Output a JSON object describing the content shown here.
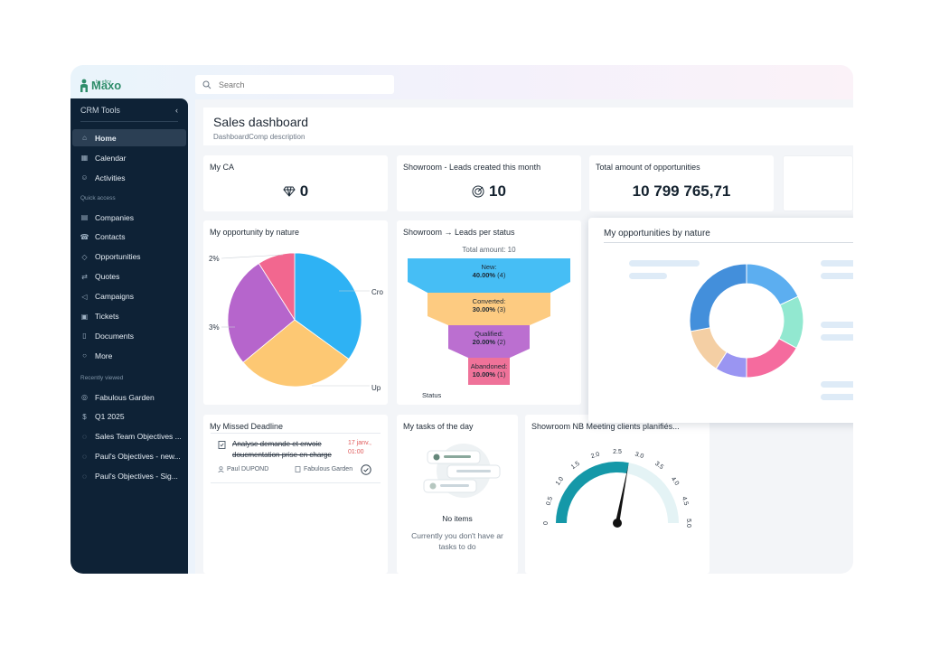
{
  "app": {
    "logo_text": "Maxo",
    "logo_sub": "by eficy",
    "brand_color": "#2e8d6a"
  },
  "search": {
    "placeholder": "Search"
  },
  "sidebar": {
    "header": "CRM Tools",
    "main_items": [
      {
        "label": "Home",
        "icon": "home-icon"
      },
      {
        "label": "Calendar",
        "icon": "calendar-icon"
      },
      {
        "label": "Activities",
        "icon": "activities-icon"
      }
    ],
    "quick_access_title": "Quick access",
    "quick_items": [
      {
        "label": "Companies",
        "icon": "building-icon"
      },
      {
        "label": "Contacts",
        "icon": "contact-icon"
      },
      {
        "label": "Opportunities",
        "icon": "diamond-icon"
      },
      {
        "label": "Quotes",
        "icon": "quote-icon"
      },
      {
        "label": "Campaigns",
        "icon": "megaphone-icon"
      },
      {
        "label": "Tickets",
        "icon": "ticket-icon"
      },
      {
        "label": "Documents",
        "icon": "document-icon"
      },
      {
        "label": "More",
        "icon": "more-icon"
      }
    ],
    "recent_title": "Recently viewed",
    "recent_items": [
      {
        "label": "Fabulous Garden",
        "icon": "company-icon"
      },
      {
        "label": "Q1 2025",
        "icon": "dollar-icon"
      },
      {
        "label": "Sales Team Objectives ...",
        "icon": "objective-icon"
      },
      {
        "label": "Paul's Objectives - new...",
        "icon": "objective-icon"
      },
      {
        "label": "Paul's Objectives - Sig...",
        "icon": "objective-icon"
      }
    ]
  },
  "page": {
    "title": "Sales dashboard",
    "description": "DashboardComp description"
  },
  "kpis": {
    "ca": {
      "title": "My CA",
      "value": "0",
      "icon": "diamond-icon"
    },
    "leads": {
      "title": "Showroom - Leads created this month",
      "value": "10",
      "icon": "target-icon"
    },
    "amount": {
      "title": "Total amount of opportunities",
      "value": "10 799 765,71"
    }
  },
  "pie": {
    "title": "My opportunity by nature",
    "labels": [
      "2%",
      "3%",
      "Cro",
      "Up"
    ],
    "slices": [
      {
        "value": 35,
        "color": "#2eb2f4"
      },
      {
        "value": 29,
        "color": "#fdc873"
      },
      {
        "value": 27,
        "color": "#b665cc"
      },
      {
        "value": 9,
        "color": "#f2678f"
      }
    ]
  },
  "funnel": {
    "title": "Showroom → Leads per status",
    "total": "Total amount: 10",
    "axis_label": "Status",
    "stages": [
      {
        "name": "New:",
        "pct": "40.00%",
        "count": "(4)",
        "color": "#3cbaf4"
      },
      {
        "name": "Converted:",
        "pct": "30.00%",
        "count": "(3)",
        "color": "#fdc87a"
      },
      {
        "name": "Qualified:",
        "pct": "20.00%",
        "count": "(2)",
        "color": "#b767cd"
      },
      {
        "name": "Abandoned:",
        "pct": "10.00%",
        "count": "(1)",
        "color": "#ee6a93"
      }
    ]
  },
  "donut": {
    "title": "My opportunities by nature",
    "segments": [
      {
        "value": 18,
        "color": "#5caef0"
      },
      {
        "value": 15,
        "color": "#92e8d0"
      },
      {
        "value": 17,
        "color": "#f56b9e"
      },
      {
        "value": 9,
        "color": "#9a95f2"
      },
      {
        "value": 13,
        "color": "#f4cfa4"
      },
      {
        "value": 28,
        "color": "#438fdb"
      }
    ]
  },
  "missed": {
    "title": "My Missed Deadline",
    "task_line1": "Analyse demande et envoie",
    "task_line2": "doucmentation prise en charge",
    "date_line1": "17 janv.,",
    "date_line2": "01:00",
    "owner": "Paul DUPOND",
    "company": "Fabulous Garden"
  },
  "tasks": {
    "title": "My tasks of the day",
    "empty_title": "No items",
    "empty_line1": "Currently you don't have ar",
    "empty_line2": "tasks to do"
  },
  "gauge": {
    "title": "Showroom NB Meeting clients planifiés...",
    "min": 0,
    "max": 5,
    "value": 2.8,
    "ticks": [
      "0",
      "0.5",
      "1.0",
      "1.5",
      "2.0",
      "2.5",
      "3.0",
      "3.5",
      "4.0",
      "4.5",
      "5.0"
    ],
    "fill_color": "#1598a8",
    "track_color": "#e4f3f5"
  }
}
